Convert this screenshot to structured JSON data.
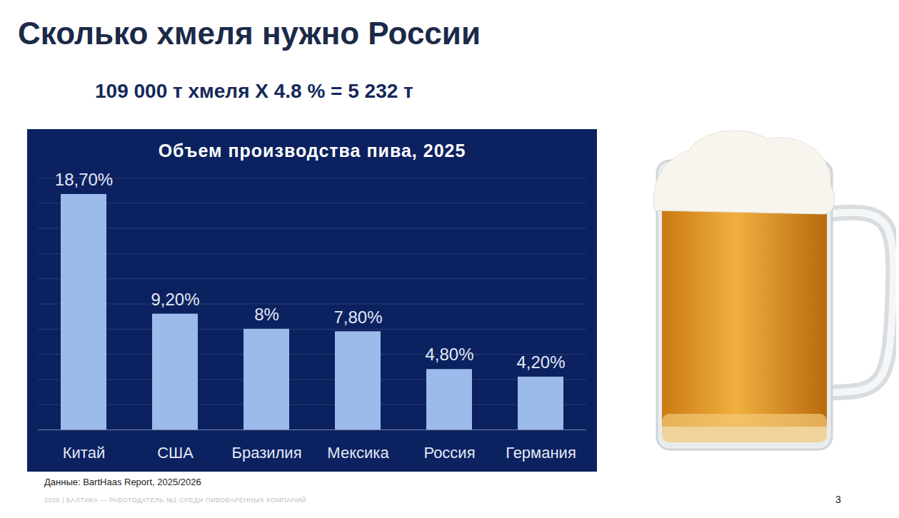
{
  "title": "Сколько хмеля нужно России",
  "subtitle": "109 000 т хмеля X 4.8 % = 5 232 т",
  "source": "Данные: BartHaas Report, 2025/2026",
  "footer": "2026 | БАЛТИКА — РАБОТОДАТЕЛЬ №1 СРЕДИ ПИВОВАРЕННЫХ КОМПАНИЙ",
  "page_number": "3",
  "chart_data": {
    "type": "bar",
    "title": "Объем производства пива, 2025",
    "categories": [
      "Китай",
      "США",
      "Бразилия",
      "Мексика",
      "Россия",
      "Германия"
    ],
    "values": [
      18.7,
      9.2,
      8,
      7.8,
      4.8,
      4.2
    ],
    "value_labels": [
      "18,70%",
      "9,20%",
      "8%",
      "7,80%",
      "4,80%",
      "4,20%"
    ],
    "color": "#9dbbea",
    "ylim": [
      0,
      20
    ],
    "yticks": [
      0,
      2,
      4,
      6,
      8,
      10,
      12,
      14,
      16,
      18,
      20
    ],
    "grid": true,
    "data_labels": true,
    "tick_labels": "x"
  }
}
